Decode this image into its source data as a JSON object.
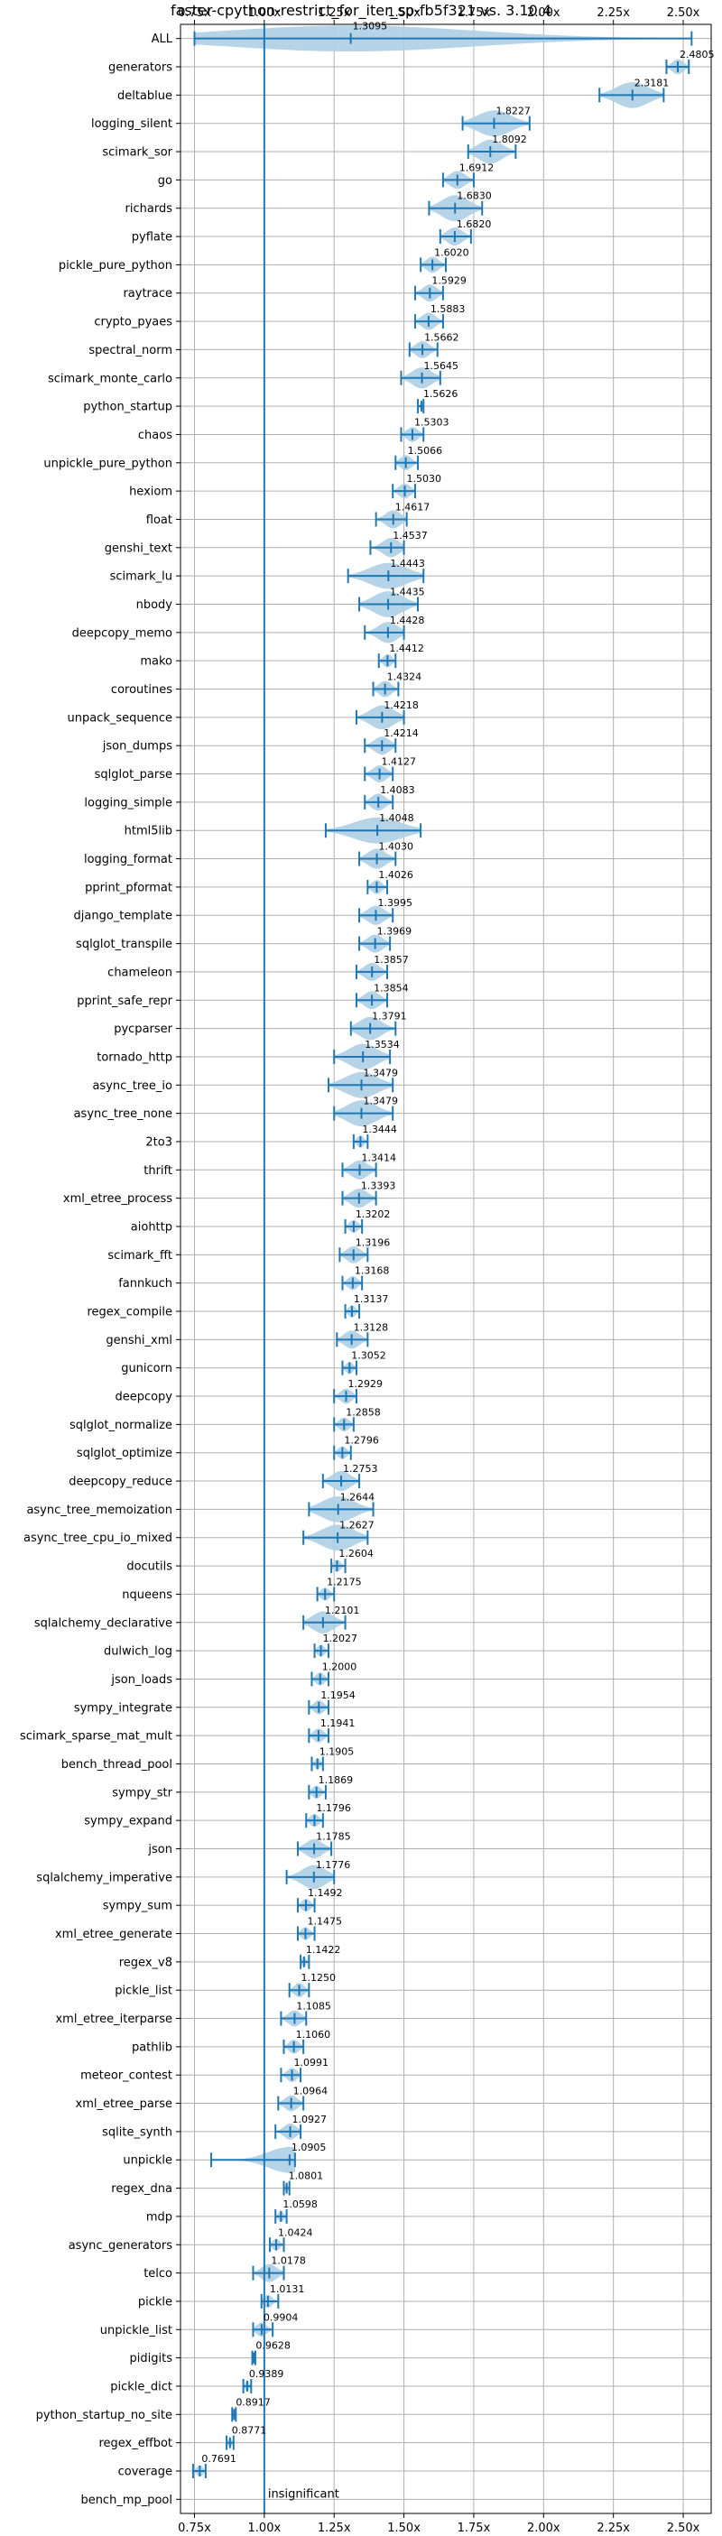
{
  "chart_data": {
    "type": "violin",
    "title": "faster-cpython-restrict_for_iter_sp-fb5f321 vs. 3.10.4",
    "xlabel": "",
    "ylabel": "",
    "xlim": [
      0.7,
      2.6
    ],
    "x_ticks": [
      0.75,
      1.0,
      1.25,
      1.5,
      1.75,
      2.0,
      2.25,
      2.5
    ],
    "x_tick_labels": [
      "0.75x",
      "1.00x",
      "1.25x",
      "1.50x",
      "1.75x",
      "2.00x",
      "2.25x",
      "2.50x"
    ],
    "grid": true,
    "reference_line": 1.0,
    "annotation": "insignificant",
    "colors": {
      "violin": "#aecfe6",
      "whisker": "#1f77b4",
      "reference": "#1f77b4",
      "grid": "#b0b0b0"
    },
    "benchmarks": [
      {
        "name": "ALL",
        "label": "1.3095",
        "mean": 1.3095,
        "min": 0.75,
        "max": 2.53
      },
      {
        "name": "generators",
        "label": "2.4805",
        "mean": 2.4805,
        "min": 2.44,
        "max": 2.52
      },
      {
        "name": "deltablue",
        "label": "2.3181",
        "mean": 2.3181,
        "min": 2.2,
        "max": 2.43
      },
      {
        "name": "logging_silent",
        "label": "1.8227",
        "mean": 1.8227,
        "min": 1.71,
        "max": 1.95
      },
      {
        "name": "scimark_sor",
        "label": "1.8092",
        "mean": 1.8092,
        "min": 1.73,
        "max": 1.9
      },
      {
        "name": "go",
        "label": "1.6912",
        "mean": 1.6912,
        "min": 1.64,
        "max": 1.75
      },
      {
        "name": "richards",
        "label": "1.6830",
        "mean": 1.683,
        "min": 1.59,
        "max": 1.78
      },
      {
        "name": "pyflate",
        "label": "1.6820",
        "mean": 1.682,
        "min": 1.63,
        "max": 1.74
      },
      {
        "name": "pickle_pure_python",
        "label": "1.6020",
        "mean": 1.602,
        "min": 1.56,
        "max": 1.65
      },
      {
        "name": "raytrace",
        "label": "1.5929",
        "mean": 1.5929,
        "min": 1.54,
        "max": 1.64
      },
      {
        "name": "crypto_pyaes",
        "label": "1.5883",
        "mean": 1.5883,
        "min": 1.54,
        "max": 1.64
      },
      {
        "name": "spectral_norm",
        "label": "1.5662",
        "mean": 1.5662,
        "min": 1.52,
        "max": 1.62
      },
      {
        "name": "scimark_monte_carlo",
        "label": "1.5645",
        "mean": 1.5645,
        "min": 1.49,
        "max": 1.63
      },
      {
        "name": "python_startup",
        "label": "1.5626",
        "mean": 1.5626,
        "min": 1.55,
        "max": 1.57
      },
      {
        "name": "chaos",
        "label": "1.5303",
        "mean": 1.5303,
        "min": 1.49,
        "max": 1.57
      },
      {
        "name": "unpickle_pure_python",
        "label": "1.5066",
        "mean": 1.5066,
        "min": 1.47,
        "max": 1.55
      },
      {
        "name": "hexiom",
        "label": "1.5030",
        "mean": 1.503,
        "min": 1.46,
        "max": 1.54
      },
      {
        "name": "float",
        "label": "1.4617",
        "mean": 1.4617,
        "min": 1.4,
        "max": 1.51
      },
      {
        "name": "genshi_text",
        "label": "1.4537",
        "mean": 1.4537,
        "min": 1.38,
        "max": 1.5
      },
      {
        "name": "scimark_lu",
        "label": "1.4443",
        "mean": 1.4443,
        "min": 1.3,
        "max": 1.57
      },
      {
        "name": "nbody",
        "label": "1.4435",
        "mean": 1.4435,
        "min": 1.34,
        "max": 1.55
      },
      {
        "name": "deepcopy_memo",
        "label": "1.4428",
        "mean": 1.4428,
        "min": 1.36,
        "max": 1.5
      },
      {
        "name": "mako",
        "label": "1.4412",
        "mean": 1.4412,
        "min": 1.41,
        "max": 1.47
      },
      {
        "name": "coroutines",
        "label": "1.4324",
        "mean": 1.4324,
        "min": 1.39,
        "max": 1.48
      },
      {
        "name": "unpack_sequence",
        "label": "1.4218",
        "mean": 1.4218,
        "min": 1.33,
        "max": 1.5
      },
      {
        "name": "json_dumps",
        "label": "1.4214",
        "mean": 1.4214,
        "min": 1.36,
        "max": 1.47
      },
      {
        "name": "sqlglot_parse",
        "label": "1.4127",
        "mean": 1.4127,
        "min": 1.36,
        "max": 1.46
      },
      {
        "name": "logging_simple",
        "label": "1.4083",
        "mean": 1.4083,
        "min": 1.36,
        "max": 1.46
      },
      {
        "name": "html5lib",
        "label": "1.4048",
        "mean": 1.4048,
        "min": 1.22,
        "max": 1.56
      },
      {
        "name": "logging_format",
        "label": "1.4030",
        "mean": 1.403,
        "min": 1.34,
        "max": 1.47
      },
      {
        "name": "pprint_pformat",
        "label": "1.4026",
        "mean": 1.4026,
        "min": 1.37,
        "max": 1.44
      },
      {
        "name": "django_template",
        "label": "1.3995",
        "mean": 1.3995,
        "min": 1.34,
        "max": 1.46
      },
      {
        "name": "sqlglot_transpile",
        "label": "1.3969",
        "mean": 1.3969,
        "min": 1.34,
        "max": 1.45
      },
      {
        "name": "chameleon",
        "label": "1.3857",
        "mean": 1.3857,
        "min": 1.33,
        "max": 1.44
      },
      {
        "name": "pprint_safe_repr",
        "label": "1.3854",
        "mean": 1.3854,
        "min": 1.33,
        "max": 1.44
      },
      {
        "name": "pycparser",
        "label": "1.3791",
        "mean": 1.3791,
        "min": 1.31,
        "max": 1.47
      },
      {
        "name": "tornado_http",
        "label": "1.3534",
        "mean": 1.3534,
        "min": 1.25,
        "max": 1.45
      },
      {
        "name": "async_tree_io",
        "label": "1.3479",
        "mean": 1.3479,
        "min": 1.23,
        "max": 1.46
      },
      {
        "name": "async_tree_none",
        "label": "1.3479",
        "mean": 1.3479,
        "min": 1.25,
        "max": 1.46
      },
      {
        "name": "2to3",
        "label": "1.3444",
        "mean": 1.3444,
        "min": 1.32,
        "max": 1.37
      },
      {
        "name": "thrift",
        "label": "1.3414",
        "mean": 1.3414,
        "min": 1.28,
        "max": 1.4
      },
      {
        "name": "xml_etree_process",
        "label": "1.3393",
        "mean": 1.3393,
        "min": 1.28,
        "max": 1.4
      },
      {
        "name": "aiohttp",
        "label": "1.3202",
        "mean": 1.3202,
        "min": 1.29,
        "max": 1.35
      },
      {
        "name": "scimark_fft",
        "label": "1.3196",
        "mean": 1.3196,
        "min": 1.27,
        "max": 1.37
      },
      {
        "name": "fannkuch",
        "label": "1.3168",
        "mean": 1.3168,
        "min": 1.28,
        "max": 1.35
      },
      {
        "name": "regex_compile",
        "label": "1.3137",
        "mean": 1.3137,
        "min": 1.29,
        "max": 1.34
      },
      {
        "name": "genshi_xml",
        "label": "1.3128",
        "mean": 1.3128,
        "min": 1.26,
        "max": 1.37
      },
      {
        "name": "gunicorn",
        "label": "1.3052",
        "mean": 1.3052,
        "min": 1.28,
        "max": 1.33
      },
      {
        "name": "deepcopy",
        "label": "1.2929",
        "mean": 1.2929,
        "min": 1.25,
        "max": 1.33
      },
      {
        "name": "sqlglot_normalize",
        "label": "1.2858",
        "mean": 1.2858,
        "min": 1.25,
        "max": 1.32
      },
      {
        "name": "sqlglot_optimize",
        "label": "1.2796",
        "mean": 1.2796,
        "min": 1.25,
        "max": 1.31
      },
      {
        "name": "deepcopy_reduce",
        "label": "1.2753",
        "mean": 1.2753,
        "min": 1.21,
        "max": 1.34
      },
      {
        "name": "async_tree_memoization",
        "label": "1.2644",
        "mean": 1.2644,
        "min": 1.16,
        "max": 1.39
      },
      {
        "name": "async_tree_cpu_io_mixed",
        "label": "1.2627",
        "mean": 1.2627,
        "min": 1.14,
        "max": 1.37
      },
      {
        "name": "docutils",
        "label": "1.2604",
        "mean": 1.2604,
        "min": 1.24,
        "max": 1.29
      },
      {
        "name": "nqueens",
        "label": "1.2175",
        "mean": 1.2175,
        "min": 1.19,
        "max": 1.25
      },
      {
        "name": "sqlalchemy_declarative",
        "label": "1.2101",
        "mean": 1.2101,
        "min": 1.14,
        "max": 1.29
      },
      {
        "name": "dulwich_log",
        "label": "1.2027",
        "mean": 1.2027,
        "min": 1.18,
        "max": 1.23
      },
      {
        "name": "json_loads",
        "label": "1.2000",
        "mean": 1.2,
        "min": 1.17,
        "max": 1.23
      },
      {
        "name": "sympy_integrate",
        "label": "1.1954",
        "mean": 1.1954,
        "min": 1.16,
        "max": 1.23
      },
      {
        "name": "scimark_sparse_mat_mult",
        "label": "1.1941",
        "mean": 1.1941,
        "min": 1.16,
        "max": 1.23
      },
      {
        "name": "bench_thread_pool",
        "label": "1.1905",
        "mean": 1.1905,
        "min": 1.17,
        "max": 1.21
      },
      {
        "name": "sympy_str",
        "label": "1.1869",
        "mean": 1.1869,
        "min": 1.16,
        "max": 1.22
      },
      {
        "name": "sympy_expand",
        "label": "1.1796",
        "mean": 1.1796,
        "min": 1.15,
        "max": 1.21
      },
      {
        "name": "json",
        "label": "1.1785",
        "mean": 1.1785,
        "min": 1.12,
        "max": 1.24
      },
      {
        "name": "sqlalchemy_imperative",
        "label": "1.1776",
        "mean": 1.1776,
        "min": 1.08,
        "max": 1.25
      },
      {
        "name": "sympy_sum",
        "label": "1.1492",
        "mean": 1.1492,
        "min": 1.12,
        "max": 1.18
      },
      {
        "name": "xml_etree_generate",
        "label": "1.1475",
        "mean": 1.1475,
        "min": 1.12,
        "max": 1.18
      },
      {
        "name": "regex_v8",
        "label": "1.1422",
        "mean": 1.1422,
        "min": 1.13,
        "max": 1.16
      },
      {
        "name": "pickle_list",
        "label": "1.1250",
        "mean": 1.125,
        "min": 1.09,
        "max": 1.16
      },
      {
        "name": "xml_etree_iterparse",
        "label": "1.1085",
        "mean": 1.1085,
        "min": 1.06,
        "max": 1.15
      },
      {
        "name": "pathlib",
        "label": "1.1060",
        "mean": 1.106,
        "min": 1.07,
        "max": 1.14
      },
      {
        "name": "meteor_contest",
        "label": "1.0991",
        "mean": 1.0991,
        "min": 1.06,
        "max": 1.13
      },
      {
        "name": "xml_etree_parse",
        "label": "1.0964",
        "mean": 1.0964,
        "min": 1.05,
        "max": 1.14
      },
      {
        "name": "sqlite_synth",
        "label": "1.0927",
        "mean": 1.0927,
        "min": 1.04,
        "max": 1.13
      },
      {
        "name": "unpickle",
        "label": "1.0905",
        "mean": 1.0905,
        "min": 0.81,
        "max": 1.11
      },
      {
        "name": "regex_dna",
        "label": "1.0801",
        "mean": 1.0801,
        "min": 1.07,
        "max": 1.09
      },
      {
        "name": "mdp",
        "label": "1.0598",
        "mean": 1.0598,
        "min": 1.04,
        "max": 1.08
      },
      {
        "name": "async_generators",
        "label": "1.0424",
        "mean": 1.0424,
        "min": 1.02,
        "max": 1.07
      },
      {
        "name": "telco",
        "label": "1.0178",
        "mean": 1.0178,
        "min": 0.96,
        "max": 1.07
      },
      {
        "name": "pickle",
        "label": "1.0131",
        "mean": 1.0131,
        "min": 0.99,
        "max": 1.05
      },
      {
        "name": "unpickle_list",
        "label": "0.9904",
        "mean": 0.9904,
        "min": 0.96,
        "max": 1.03
      },
      {
        "name": "pidigits",
        "label": "0.9628",
        "mean": 0.9628,
        "min": 0.957,
        "max": 0.968
      },
      {
        "name": "pickle_dict",
        "label": "0.9389",
        "mean": 0.9389,
        "min": 0.925,
        "max": 0.953
      },
      {
        "name": "python_startup_no_site",
        "label": "0.8917",
        "mean": 0.8917,
        "min": 0.885,
        "max": 0.898
      },
      {
        "name": "regex_effbot",
        "label": "0.8771",
        "mean": 0.8771,
        "min": 0.865,
        "max": 0.89
      },
      {
        "name": "coverage",
        "label": "0.7691",
        "mean": 0.7691,
        "min": 0.745,
        "max": 0.79
      },
      {
        "name": "bench_mp_pool",
        "label": "",
        "mean": null,
        "min": null,
        "max": null
      }
    ]
  }
}
